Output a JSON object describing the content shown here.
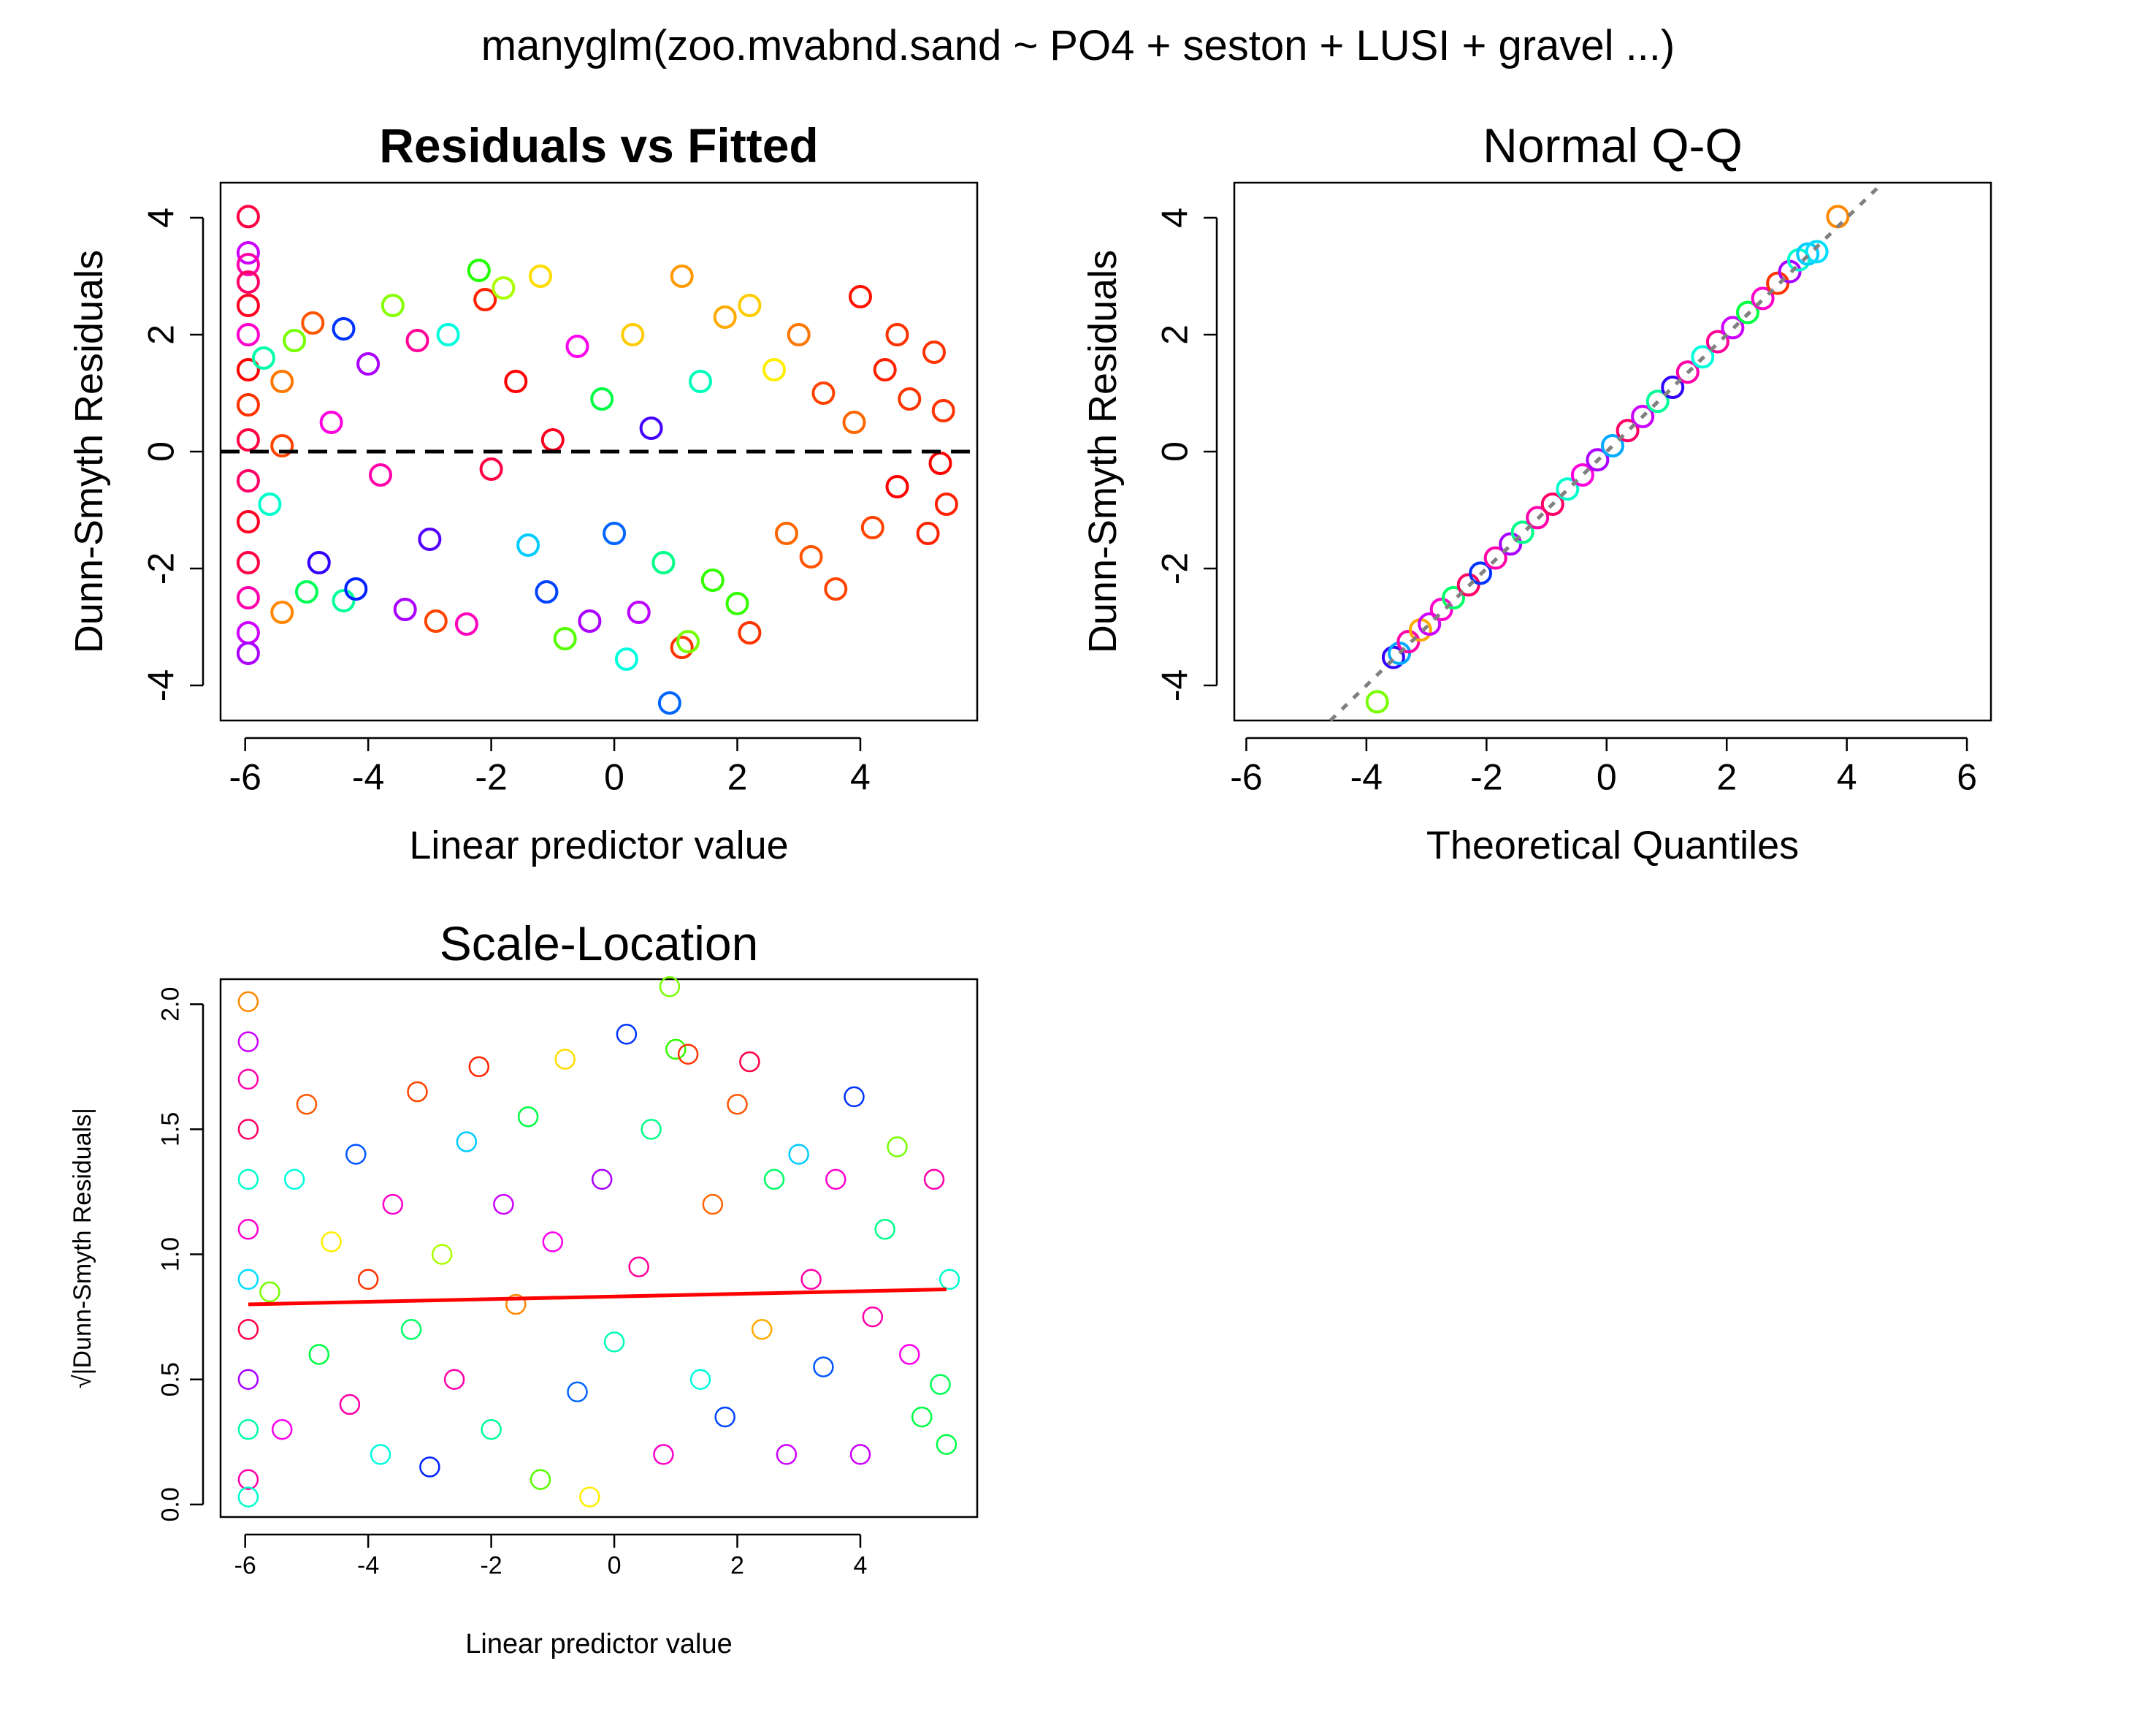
{
  "figure": {
    "title": "manyglm(zoo.mvabnd.sand ~ PO4 + seston + LUSI + gravel ...)"
  },
  "chart_data": [
    {
      "id": "residuals-vs-fitted",
      "type": "scatter",
      "title": "Residuals vs Fitted",
      "xlabel": "Linear predictor value",
      "ylabel": "Dunn-Smyth Residuals",
      "xlim": [
        -6.4,
        5.9
      ],
      "ylim": [
        -4.6,
        4.6
      ],
      "x_ticks": [
        -6,
        -4,
        -2,
        0,
        2,
        4
      ],
      "x_tick_labels": [
        "-6",
        "-4",
        "-2",
        "0",
        "2",
        "4"
      ],
      "y_ticks": [
        -4,
        -2,
        0,
        2,
        4
      ],
      "y_tick_labels": [
        "-4",
        "-2",
        "0",
        "2",
        "4"
      ],
      "reference_line": {
        "y": 0,
        "style": "dashed",
        "color": "#000000"
      },
      "marker": "open-circle",
      "colors": "rainbow palette, one color per species",
      "grid": false,
      "legend": "none",
      "points": [
        [
          -5.95,
          4.02,
          "#ff0044"
        ],
        [
          -5.95,
          3.4,
          "#cc00ff"
        ],
        [
          -5.95,
          3.2,
          "#ff00aa"
        ],
        [
          -5.95,
          2.9,
          "#ff0066"
        ],
        [
          -5.95,
          2.5,
          "#ff0022"
        ],
        [
          -5.95,
          2.0,
          "#ff00cc"
        ],
        [
          -5.95,
          1.4,
          "#ff0000"
        ],
        [
          -5.95,
          0.8,
          "#ff3300"
        ],
        [
          -5.95,
          0.2,
          "#ff0044"
        ],
        [
          -5.95,
          -0.5,
          "#ff0066"
        ],
        [
          -5.95,
          -1.2,
          "#ff0022"
        ],
        [
          -5.95,
          -1.9,
          "#ff0044"
        ],
        [
          -5.95,
          -2.5,
          "#ff00aa"
        ],
        [
          -5.95,
          -3.1,
          "#cc00ff"
        ],
        [
          -5.95,
          -3.45,
          "#aa00ff"
        ],
        [
          -5.7,
          1.6,
          "#00ffaa"
        ],
        [
          -5.6,
          -0.9,
          "#00ffcc"
        ],
        [
          -5.4,
          1.2,
          "#ff7700"
        ],
        [
          -5.4,
          0.1,
          "#ff4400"
        ],
        [
          -5.4,
          -2.75,
          "#ff8800"
        ],
        [
          -5.2,
          1.9,
          "#77ff00"
        ],
        [
          -5.0,
          -2.4,
          "#00ff55"
        ],
        [
          -4.9,
          2.2,
          "#ff5500"
        ],
        [
          -4.8,
          -1.9,
          "#3300ff"
        ],
        [
          -4.6,
          0.5,
          "#ff00dd"
        ],
        [
          -4.4,
          2.1,
          "#0033ff"
        ],
        [
          -4.4,
          -2.55,
          "#00ff99"
        ],
        [
          -4.2,
          -2.35,
          "#0022ff"
        ],
        [
          -4.0,
          1.5,
          "#aa00ff"
        ],
        [
          -3.8,
          -0.4,
          "#ff00aa"
        ],
        [
          -3.6,
          2.5,
          "#88ff00"
        ],
        [
          -3.4,
          -2.7,
          "#aa00ff"
        ],
        [
          -3.2,
          1.9,
          "#ff0099"
        ],
        [
          -3.0,
          -1.5,
          "#5500ff"
        ],
        [
          -2.9,
          -2.9,
          "#ff4400"
        ],
        [
          -2.7,
          2.0,
          "#00ffdd"
        ],
        [
          -2.4,
          -2.95,
          "#ff00bb"
        ],
        [
          -2.2,
          3.1,
          "#22ff00"
        ],
        [
          -2.1,
          2.6,
          "#ff2200"
        ],
        [
          -2.0,
          -0.3,
          "#ff0044"
        ],
        [
          -1.8,
          2.8,
          "#aaff00"
        ],
        [
          -1.6,
          1.2,
          "#ff0000"
        ],
        [
          -1.4,
          -1.6,
          "#00ccff"
        ],
        [
          -1.2,
          3.0,
          "#ffdd00"
        ],
        [
          -1.1,
          -2.4,
          "#0044ff"
        ],
        [
          -1.0,
          0.2,
          "#ff0022"
        ],
        [
          -0.8,
          -3.2,
          "#55ff00"
        ],
        [
          -0.6,
          1.8,
          "#ff00ee"
        ],
        [
          -0.4,
          -2.9,
          "#aa00ff"
        ],
        [
          -0.2,
          0.9,
          "#00ff44"
        ],
        [
          0.0,
          -1.4,
          "#0066ff"
        ],
        [
          0.2,
          -3.55,
          "#00ffdd"
        ],
        [
          0.3,
          2.0,
          "#ffcc00"
        ],
        [
          0.4,
          -2.75,
          "#bb00ff"
        ],
        [
          0.6,
          0.4,
          "#4400ff"
        ],
        [
          0.8,
          -1.9,
          "#00ff88"
        ],
        [
          0.9,
          -4.3,
          "#0066ff"
        ],
        [
          1.1,
          3.0,
          "#ff9900"
        ],
        [
          1.1,
          -3.35,
          "#ff3300"
        ],
        [
          1.2,
          -3.25,
          "#77ff00"
        ],
        [
          1.4,
          1.2,
          "#00ffbb"
        ],
        [
          1.6,
          -2.2,
          "#33ff00"
        ],
        [
          1.8,
          2.3,
          "#ffaa00"
        ],
        [
          2.0,
          -2.6,
          "#33ff00"
        ],
        [
          2.2,
          2.5,
          "#ffcc00"
        ],
        [
          2.2,
          -3.1,
          "#ff3300"
        ],
        [
          2.6,
          1.4,
          "#ffee00"
        ],
        [
          2.8,
          -1.4,
          "#ff6600"
        ],
        [
          3.0,
          2.0,
          "#ff7700"
        ],
        [
          3.2,
          -1.8,
          "#ff5500"
        ],
        [
          3.4,
          1.0,
          "#ff4400"
        ],
        [
          3.6,
          -2.35,
          "#ff4400"
        ],
        [
          3.9,
          0.5,
          "#ff6600"
        ],
        [
          4.0,
          2.65,
          "#ff1100"
        ],
        [
          4.2,
          -1.3,
          "#ff4400"
        ],
        [
          4.4,
          1.4,
          "#ff2200"
        ],
        [
          4.6,
          2.0,
          "#ff3300"
        ],
        [
          4.6,
          -0.6,
          "#ff0000"
        ],
        [
          4.8,
          0.9,
          "#ff3300"
        ],
        [
          5.1,
          -1.4,
          "#ff2200"
        ],
        [
          5.2,
          1.7,
          "#ff3300"
        ],
        [
          5.3,
          -0.2,
          "#ff0000"
        ],
        [
          5.35,
          0.7,
          "#ff3300"
        ],
        [
          5.4,
          -0.9,
          "#ff2200"
        ]
      ]
    },
    {
      "id": "normal-qq",
      "type": "scatter",
      "title": "Normal Q-Q",
      "xlabel": "Theoretical Quantiles",
      "ylabel": "Dunn-Smyth Residuals",
      "xlim": [
        -6.2,
        6.4
      ],
      "ylim": [
        -4.6,
        4.6
      ],
      "x_ticks": [
        -6,
        -4,
        -2,
        0,
        2,
        4,
        6
      ],
      "x_tick_labels": [
        "-6",
        "-4",
        "-2",
        "0",
        "2",
        "4",
        "6"
      ],
      "y_ticks": [
        -4,
        -2,
        0,
        2,
        4
      ],
      "y_tick_labels": [
        "-4",
        "-2",
        "0",
        "2",
        "4"
      ],
      "reference_line": {
        "slope": 1,
        "intercept": 0,
        "style": "dotted",
        "color": "#808080"
      },
      "marker": "open-circle",
      "grid": false,
      "legend": "none",
      "points": [
        [
          -3.82,
          -4.28,
          "#77ff00"
        ],
        [
          -3.55,
          -3.52,
          "#3300ff"
        ],
        [
          -3.45,
          -3.45,
          "#00aaff"
        ],
        [
          -3.3,
          -3.25,
          "#ff00aa"
        ],
        [
          -3.1,
          -3.05,
          "#ffaa00"
        ],
        [
          -2.95,
          -2.95,
          "#cc00ff"
        ],
        [
          -2.75,
          -2.7,
          "#ff00cc"
        ],
        [
          -2.55,
          -2.5,
          "#00ff66"
        ],
        [
          -2.3,
          -2.28,
          "#ff0066"
        ],
        [
          -2.1,
          -2.08,
          "#0033ff"
        ],
        [
          -1.85,
          -1.82,
          "#ff00aa"
        ],
        [
          -1.6,
          -1.58,
          "#aa00ff"
        ],
        [
          -1.4,
          -1.38,
          "#00ff88"
        ],
        [
          -1.15,
          -1.13,
          "#ff00aa"
        ],
        [
          -0.9,
          -0.9,
          "#ff0066"
        ],
        [
          -0.65,
          -0.64,
          "#00ffcc"
        ],
        [
          -0.4,
          -0.4,
          "#ff00dd"
        ],
        [
          -0.15,
          -0.14,
          "#aa00ff"
        ],
        [
          0.1,
          0.1,
          "#00aaff"
        ],
        [
          0.35,
          0.36,
          "#ff0066"
        ],
        [
          0.6,
          0.6,
          "#cc00ff"
        ],
        [
          0.85,
          0.86,
          "#00ff99"
        ],
        [
          1.1,
          1.1,
          "#3300ff"
        ],
        [
          1.35,
          1.36,
          "#ff00aa"
        ],
        [
          1.6,
          1.62,
          "#00ffdd"
        ],
        [
          1.85,
          1.88,
          "#ff0099"
        ],
        [
          2.1,
          2.12,
          "#cc00ff"
        ],
        [
          2.35,
          2.38,
          "#00ff44"
        ],
        [
          2.6,
          2.62,
          "#ff00cc"
        ],
        [
          2.85,
          2.88,
          "#ff3300"
        ],
        [
          3.05,
          3.08,
          "#aa00ff"
        ],
        [
          3.2,
          3.28,
          "#00ffcc"
        ],
        [
          3.35,
          3.38,
          "#00ccff"
        ],
        [
          3.5,
          3.42,
          "#00ddff"
        ],
        [
          3.85,
          4.02,
          "#ff8800"
        ]
      ]
    },
    {
      "id": "scale-location",
      "type": "scatter",
      "title": "Scale-Location",
      "xlabel": "Linear predictor value",
      "ylabel": "√|Dunn-Smyth Residuals|",
      "xlim": [
        -6.4,
        5.9
      ],
      "ylim": [
        -0.05,
        2.1
      ],
      "x_ticks": [
        -6,
        -4,
        -2,
        0,
        2,
        4
      ],
      "x_tick_labels": [
        "-6",
        "-4",
        "-2",
        "0",
        "2",
        "4"
      ],
      "y_ticks": [
        0.0,
        0.5,
        1.0,
        1.5,
        2.0
      ],
      "y_tick_labels": [
        "0.0",
        "0.5",
        "1.0",
        "1.5",
        "2.0"
      ],
      "smoother": {
        "x": [
          -5.95,
          5.4
        ],
        "y": [
          0.8,
          0.86
        ],
        "color": "#ff0000"
      },
      "marker": "open-circle",
      "grid": false,
      "legend": "none",
      "points": [
        [
          -5.95,
          2.01,
          "#ff8800"
        ],
        [
          -5.95,
          1.85,
          "#cc00ff"
        ],
        [
          -5.95,
          1.7,
          "#ff00aa"
        ],
        [
          -5.95,
          1.5,
          "#ff0066"
        ],
        [
          -5.95,
          1.3,
          "#00ffcc"
        ],
        [
          -5.95,
          1.1,
          "#ff00cc"
        ],
        [
          -5.95,
          0.9,
          "#00ddff"
        ],
        [
          -5.95,
          0.7,
          "#ff0044"
        ],
        [
          -5.95,
          0.5,
          "#aa00ff"
        ],
        [
          -5.95,
          0.3,
          "#00ffaa"
        ],
        [
          -5.95,
          0.1,
          "#ff00aa"
        ],
        [
          -5.95,
          0.03,
          "#00ffcc"
        ],
        [
          -5.6,
          0.85,
          "#77ff00"
        ],
        [
          -5.4,
          0.3,
          "#ff00ee"
        ],
        [
          -5.2,
          1.3,
          "#00ffdd"
        ],
        [
          -5.0,
          1.6,
          "#ff5500"
        ],
        [
          -4.8,
          0.6,
          "#00ff44"
        ],
        [
          -4.6,
          1.05,
          "#ffee00"
        ],
        [
          -4.3,
          0.4,
          "#ff00aa"
        ],
        [
          -4.2,
          1.4,
          "#0055ff"
        ],
        [
          -4.0,
          0.9,
          "#ff3300"
        ],
        [
          -3.8,
          0.2,
          "#00ffdd"
        ],
        [
          -3.6,
          1.2,
          "#ff00cc"
        ],
        [
          -3.3,
          0.7,
          "#00ff66"
        ],
        [
          -3.2,
          1.65,
          "#ff4400"
        ],
        [
          -3.0,
          0.15,
          "#0022ff"
        ],
        [
          -2.8,
          1.0,
          "#aaff00"
        ],
        [
          -2.6,
          0.5,
          "#ff00aa"
        ],
        [
          -2.4,
          1.45,
          "#00ccff"
        ],
        [
          -2.2,
          1.75,
          "#ff2200"
        ],
        [
          -2.0,
          0.3,
          "#00ff99"
        ],
        [
          -1.8,
          1.2,
          "#cc00ff"
        ],
        [
          -1.6,
          0.8,
          "#ff8800"
        ],
        [
          -1.4,
          1.55,
          "#00ff44"
        ],
        [
          -1.2,
          0.1,
          "#55ff00"
        ],
        [
          -1.0,
          1.05,
          "#ff00ee"
        ],
        [
          -0.8,
          1.78,
          "#ffdd00"
        ],
        [
          -0.6,
          0.45,
          "#0066ff"
        ],
        [
          -0.4,
          0.03,
          "#ffee00"
        ],
        [
          -0.2,
          1.3,
          "#aa00ff"
        ],
        [
          0.0,
          0.65,
          "#00ffbb"
        ],
        [
          0.2,
          1.88,
          "#0033ff"
        ],
        [
          0.4,
          0.95,
          "#ff0099"
        ],
        [
          0.6,
          1.5,
          "#00ff88"
        ],
        [
          0.8,
          0.2,
          "#ff00cc"
        ],
        [
          0.9,
          2.07,
          "#77ff00"
        ],
        [
          1.0,
          1.82,
          "#33ff00"
        ],
        [
          1.2,
          1.8,
          "#ff3300"
        ],
        [
          1.4,
          0.5,
          "#00ffdd"
        ],
        [
          1.6,
          1.2,
          "#ff6600"
        ],
        [
          1.8,
          0.35,
          "#0044ff"
        ],
        [
          2.0,
          1.6,
          "#ff5500"
        ],
        [
          2.2,
          1.77,
          "#ff0044"
        ],
        [
          2.4,
          0.7,
          "#ffaa00"
        ],
        [
          2.6,
          1.3,
          "#00ff66"
        ],
        [
          2.8,
          0.2,
          "#cc00ff"
        ],
        [
          3.0,
          1.4,
          "#00ccff"
        ],
        [
          3.2,
          0.9,
          "#ff00aa"
        ],
        [
          3.4,
          0.55,
          "#0055ff"
        ],
        [
          3.6,
          1.3,
          "#ff00cc"
        ],
        [
          3.9,
          1.63,
          "#0033ff"
        ],
        [
          4.0,
          0.2,
          "#cc00ff"
        ],
        [
          4.2,
          0.75,
          "#ff00aa"
        ],
        [
          4.4,
          1.1,
          "#00ff88"
        ],
        [
          4.6,
          1.43,
          "#77ff00"
        ],
        [
          4.8,
          0.6,
          "#ff00ee"
        ],
        [
          5.0,
          0.35,
          "#00ff44"
        ],
        [
          5.2,
          1.3,
          "#ff00aa"
        ],
        [
          5.3,
          0.48,
          "#00ff55"
        ],
        [
          5.4,
          0.24,
          "#00ff44"
        ],
        [
          5.45,
          0.9,
          "#00ffcc"
        ]
      ]
    }
  ]
}
